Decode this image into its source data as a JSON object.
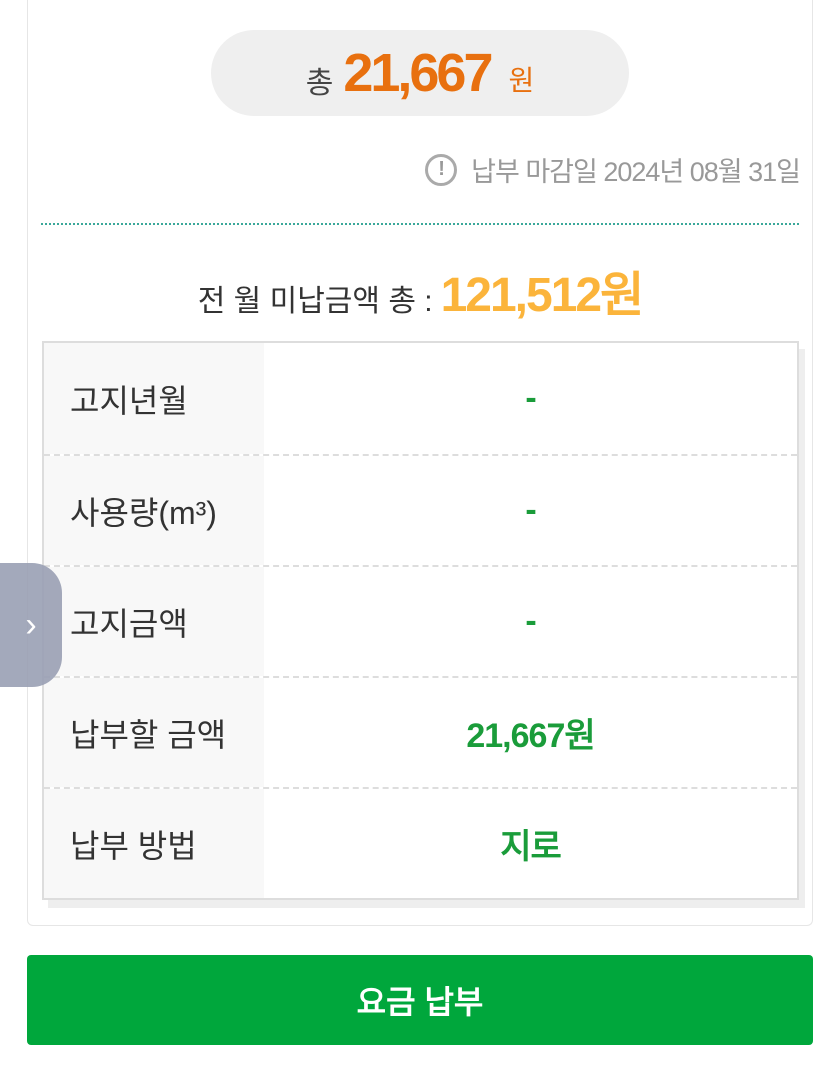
{
  "total": {
    "prefix": "총",
    "amount": "21,667",
    "unit": "원"
  },
  "deadline": {
    "icon": "exclamation-circle-icon",
    "text": "납부 마감일 2024년 08월 31일"
  },
  "unpaid": {
    "label": "전 월 미납금액 총 :",
    "value": "121,512원"
  },
  "table": {
    "rows": [
      {
        "label": "고지년월",
        "value": "-"
      },
      {
        "label": "사용량(m³)",
        "value": "-"
      },
      {
        "label": "고지금액",
        "value": "-"
      },
      {
        "label": "납부할 금액",
        "value": "21,667원"
      },
      {
        "label": "납부 방법",
        "value": "지로"
      }
    ]
  },
  "pay_button": "요금 납부",
  "side_tab": {
    "icon": "chevron-right-icon",
    "glyph": "›"
  },
  "colors": {
    "accent_orange": "#e8700f",
    "unpaid_yellow": "#fbb43b",
    "green": "#00a73c"
  }
}
